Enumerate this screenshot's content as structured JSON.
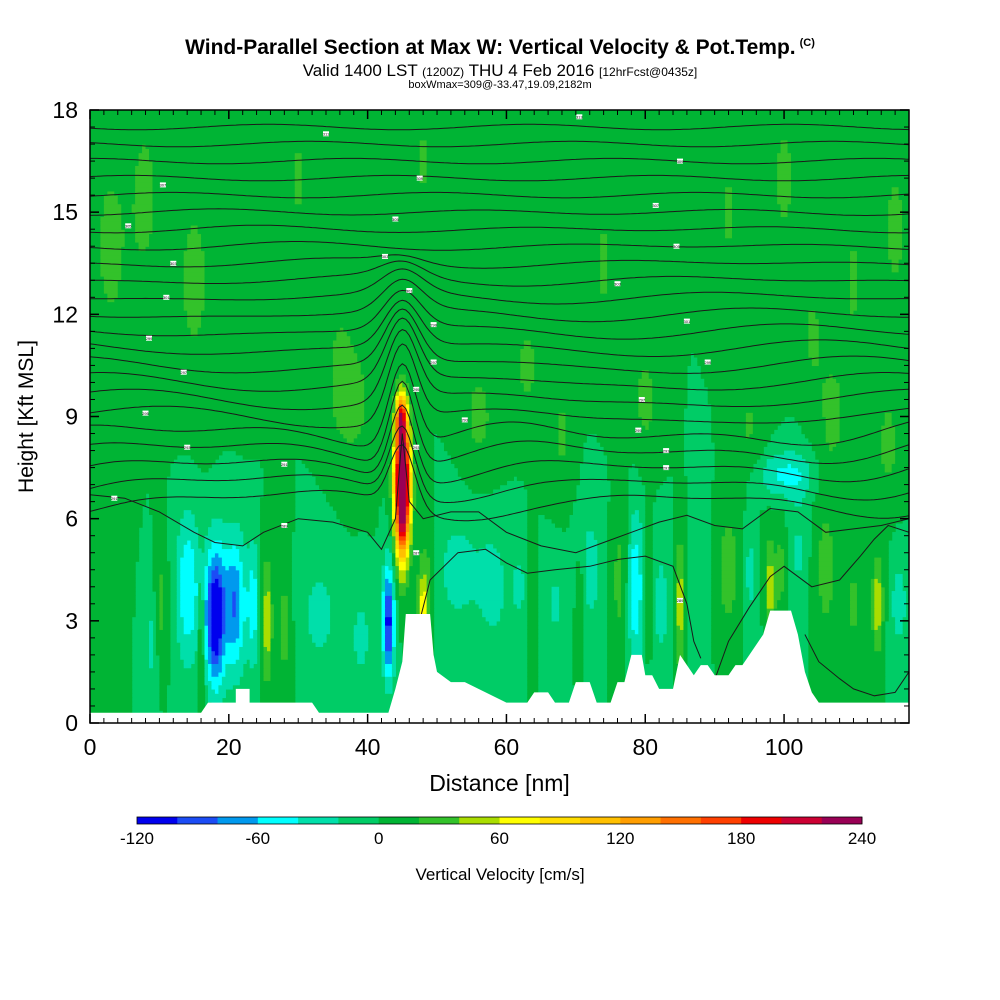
{
  "header": {
    "title": "Wind-Parallel Section at Max W: Vertical Velocity & Pot.Temp.",
    "copyright": "(C)",
    "subtitle_main": "Valid 1400 LST",
    "subtitle_utc": "(1200Z)",
    "subtitle_date": "THU 4 Feb 2016",
    "subtitle_fcst": "[12hrFcst@0435z]",
    "boxinfo": "boxWmax=309@-33.47,19.09,2182m"
  },
  "chart_data": {
    "type": "heatmap",
    "xlabel": "Distance [nm]",
    "ylabel": "Height [Kft MSL]",
    "xlim": [
      0,
      118
    ],
    "ylim": [
      0,
      18
    ],
    "x_ticks": [
      0,
      20,
      40,
      60,
      80,
      100
    ],
    "y_ticks": [
      0,
      3,
      6,
      9,
      12,
      15,
      18
    ],
    "grid": false,
    "background_value_cm_s": 0,
    "max_vertical_velocity": {
      "value_cm_s": 309,
      "distance_nm": 45,
      "height_kft": 7
    },
    "colorbar": {
      "label": "Vertical Velocity [cm/s]",
      "placement": "bottom",
      "levels": [
        -120,
        -100,
        -80,
        -60,
        -40,
        -20,
        0,
        20,
        40,
        60,
        80,
        100,
        120,
        140,
        160,
        180,
        200,
        220,
        240
      ],
      "tick_labels": [
        "-120",
        "-60",
        "0",
        "60",
        "120",
        "180",
        "240"
      ],
      "colors": [
        "#0000ee",
        "#1c4cf5",
        "#0099ee",
        "#00ffff",
        "#00dfaa",
        "#00cc66",
        "#00b434",
        "#33c22a",
        "#aadd00",
        "#ffff00",
        "#ffde00",
        "#ffc000",
        "#ff9e00",
        "#ff7000",
        "#ff4000",
        "#ee0000",
        "#cc0033",
        "#990055"
      ]
    },
    "terrain_profile_kft": [
      [
        0,
        0.3
      ],
      [
        16,
        0.3
      ],
      [
        17,
        0.6
      ],
      [
        21,
        0.6
      ],
      [
        21,
        1.0
      ],
      [
        23,
        1.0
      ],
      [
        23,
        0.6
      ],
      [
        32,
        0.6
      ],
      [
        33,
        0.3
      ],
      [
        43,
        0.3
      ],
      [
        44,
        1.0
      ],
      [
        45,
        1.8
      ],
      [
        45.5,
        3.2
      ],
      [
        49,
        3.2
      ],
      [
        49.5,
        2.0
      ],
      [
        50,
        1.5
      ],
      [
        52,
        1.2
      ],
      [
        54,
        1.2
      ],
      [
        57,
        0.9
      ],
      [
        60,
        0.6
      ],
      [
        63,
        0.6
      ],
      [
        64,
        0.9
      ],
      [
        66,
        0.9
      ],
      [
        67,
        0.6
      ],
      [
        69,
        0.6
      ],
      [
        70,
        1.2
      ],
      [
        72,
        1.2
      ],
      [
        73,
        0.6
      ],
      [
        75,
        0.6
      ],
      [
        76,
        1.2
      ],
      [
        77,
        1.2
      ],
      [
        78,
        2.0
      ],
      [
        79.5,
        2.0
      ],
      [
        80,
        1.4
      ],
      [
        81,
        1.4
      ],
      [
        82,
        1.0
      ],
      [
        84,
        1.0
      ],
      [
        85,
        2.0
      ],
      [
        86,
        1.7
      ],
      [
        87,
        1.4
      ],
      [
        88,
        1.7
      ],
      [
        89,
        1.7
      ],
      [
        90,
        1.4
      ],
      [
        92,
        1.4
      ],
      [
        93,
        1.7
      ],
      [
        94,
        1.7
      ],
      [
        95,
        2.0
      ],
      [
        97,
        2.6
      ],
      [
        98,
        3.3
      ],
      [
        101,
        3.3
      ],
      [
        102,
        2.6
      ],
      [
        103,
        1.5
      ],
      [
        104,
        0.9
      ],
      [
        105,
        0.6
      ],
      [
        118,
        0.6
      ]
    ],
    "contour_labels": [
      {
        "x": 5.5,
        "y": 14.6,
        "text": "305"
      },
      {
        "x": 10.5,
        "y": 15.8,
        "text": "307"
      },
      {
        "x": 34,
        "y": 17.3,
        "text": "311"
      },
      {
        "x": 47.5,
        "y": 16.0,
        "text": "309"
      },
      {
        "x": 70.5,
        "y": 17.8,
        "text": "313"
      },
      {
        "x": 85,
        "y": 16.5,
        "text": "309"
      },
      {
        "x": 12,
        "y": 13.5,
        "text": "303"
      },
      {
        "x": 44,
        "y": 14.8,
        "text": "305"
      },
      {
        "x": 81.5,
        "y": 15.2,
        "text": "307"
      },
      {
        "x": 11,
        "y": 12.5,
        "text": "301"
      },
      {
        "x": 42.5,
        "y": 13.7,
        "text": "303"
      },
      {
        "x": 84.5,
        "y": 14.0,
        "text": "305"
      },
      {
        "x": 8.5,
        "y": 11.3,
        "text": "299"
      },
      {
        "x": 46,
        "y": 12.7,
        "text": "301"
      },
      {
        "x": 76,
        "y": 12.9,
        "text": "303"
      },
      {
        "x": 13.5,
        "y": 10.3,
        "text": "297"
      },
      {
        "x": 49.5,
        "y": 11.7,
        "text": "299"
      },
      {
        "x": 86,
        "y": 11.8,
        "text": "301"
      },
      {
        "x": 49.5,
        "y": 10.6,
        "text": "297"
      },
      {
        "x": 89,
        "y": 10.6,
        "text": "299"
      },
      {
        "x": 8,
        "y": 9.1,
        "text": "295"
      },
      {
        "x": 47,
        "y": 9.8,
        "text": "295"
      },
      {
        "x": 79.5,
        "y": 9.5,
        "text": "297"
      },
      {
        "x": 54,
        "y": 8.9,
        "text": "293"
      },
      {
        "x": 79,
        "y": 8.6,
        "text": "295"
      },
      {
        "x": 14,
        "y": 8.1,
        "text": "293"
      },
      {
        "x": 47,
        "y": 8.1,
        "text": "293"
      },
      {
        "x": 83,
        "y": 8.0,
        "text": "293"
      },
      {
        "x": 28,
        "y": 7.6,
        "text": "291"
      },
      {
        "x": 83,
        "y": 7.5,
        "text": "291"
      },
      {
        "x": 3.5,
        "y": 6.6,
        "text": "291"
      },
      {
        "x": 28,
        "y": 5.8,
        "text": "289"
      },
      {
        "x": 47,
        "y": 5.0,
        "text": "287"
      },
      {
        "x": 85,
        "y": 3.6,
        "text": "289"
      }
    ]
  }
}
